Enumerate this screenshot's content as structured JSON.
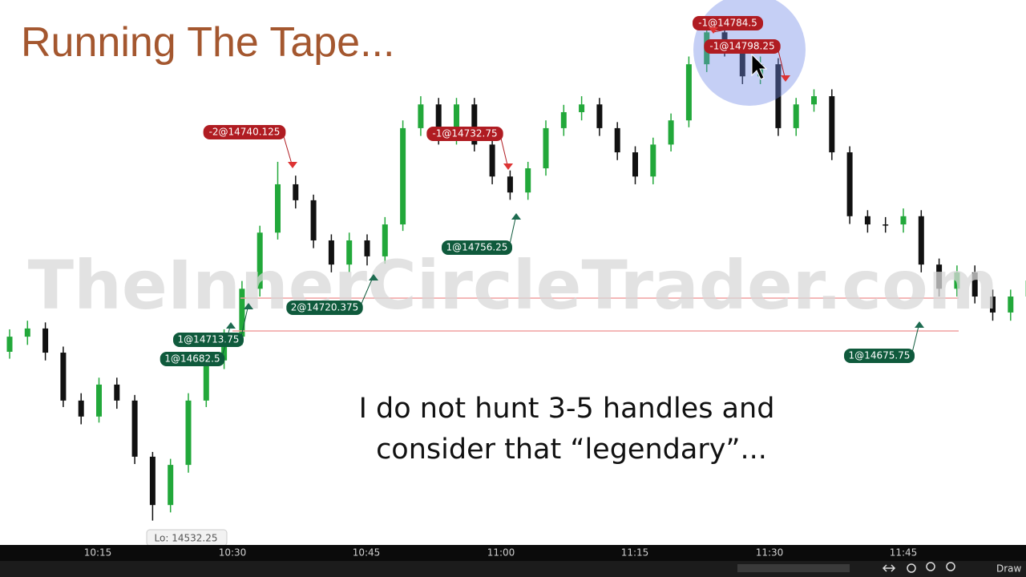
{
  "title": "Running The Tape...",
  "caption": [
    "I do not hunt 3-5 handles and",
    "consider that “legendary”..."
  ],
  "watermark": "TheInnerCircleTrader.com",
  "chart": {
    "type": "candlestick",
    "ylim": [
      14520,
      14830
    ],
    "up_color": "#22a83a",
    "down_color": "#111111",
    "open": [
      14630,
      14638.75,
      14643.5,
      14629.5,
      14601.75,
      14592.5,
      14611,
      14601.75,
      14569.25,
      14541.25,
      14564.5,
      14601.75,
      14625,
      14638.75,
      14666.5,
      14699,
      14727,
      14717.75,
      14694.5,
      14680.5,
      14694.5,
      14685.25,
      14703.75,
      14759.5,
      14773.25,
      14754.75,
      14773.25,
      14750,
      14731.5,
      14722.25,
      14736.25,
      14759.5,
      14768.75,
      14773.25,
      14759.5,
      14745.5,
      14731.5,
      14750,
      14764,
      14796.5,
      14815,
      14805.75,
      14789.5,
      14796.5,
      14759.5,
      14773.25,
      14778,
      14745.5,
      14708.5,
      14703.75,
      14703.75,
      14708.5,
      14680.5,
      14666.5,
      14676,
      14662,
      14652.75,
      14662
    ],
    "high": [
      14643,
      14648,
      14647,
      14633,
      14606,
      14615,
      14615,
      14605,
      14572,
      14568,
      14606,
      14629,
      14643,
      14671,
      14703,
      14740,
      14732,
      14721,
      14698,
      14699,
      14698,
      14708,
      14764,
      14778,
      14777,
      14777,
      14777,
      14754,
      14735,
      14740,
      14764,
      14773,
      14778,
      14777,
      14763,
      14749,
      14754,
      14768,
      14801,
      14819,
      14819,
      14810,
      14801,
      14800,
      14777,
      14782,
      14782,
      14749,
      14712,
      14708,
      14713,
      14712,
      14684,
      14680,
      14680,
      14666,
      14666,
      14675
    ],
    "low": [
      14626,
      14634,
      14625,
      14598,
      14588,
      14589,
      14597,
      14565,
      14532.25,
      14537,
      14560,
      14598,
      14620,
      14634,
      14662,
      14695,
      14713,
      14690,
      14676,
      14676,
      14680,
      14681,
      14700,
      14755,
      14750,
      14750,
      14746,
      14727,
      14718,
      14718,
      14732,
      14755,
      14764,
      14755,
      14741,
      14727,
      14727,
      14746,
      14760,
      14792,
      14801,
      14785,
      14785,
      14755,
      14755,
      14769,
      14741,
      14704,
      14699,
      14699,
      14699,
      14676,
      14662,
      14662,
      14658,
      14648,
      14648,
      14658
    ],
    "close": [
      14638.75,
      14643.5,
      14629.5,
      14601.75,
      14592.5,
      14611,
      14601.75,
      14569.25,
      14541.25,
      14564.5,
      14601.75,
      14625,
      14638.75,
      14666.5,
      14699,
      14727,
      14717.75,
      14694.5,
      14680.5,
      14694.5,
      14685.25,
      14703.75,
      14759.5,
      14773.25,
      14754.75,
      14773.25,
      14750,
      14731.5,
      14722.25,
      14736.25,
      14759.5,
      14768.75,
      14773.25,
      14759.5,
      14745.5,
      14731.5,
      14750,
      14764,
      14796.5,
      14815,
      14805.75,
      14789.5,
      14796.5,
      14759.5,
      14773.25,
      14778,
      14745.5,
      14708.5,
      14703.75,
      14703.75,
      14708.5,
      14680.5,
      14666.5,
      14676,
      14662,
      14652.75,
      14662,
      14671.25
    ]
  },
  "time_labels": [
    "10:15",
    "10:30",
    "10:45",
    "11:00",
    "11:15",
    "11:30",
    "11:45"
  ],
  "orders": [
    {
      "label": "-2@14740.125",
      "color": "#b01c22"
    },
    {
      "label": "-1@14732.75",
      "color": "#b01c22"
    },
    {
      "label": "-1@14784.5",
      "color": "#b01c22"
    },
    {
      "label": "-1@14798.25",
      "color": "#b01c22"
    },
    {
      "label": "1@14756.25",
      "color": "#0f5a3c"
    },
    {
      "label": "2@14720.375",
      "color": "#0f5a3c"
    },
    {
      "label": "1@14713.75",
      "color": "#0f5a3c"
    },
    {
      "label": "1@14682.5",
      "color": "#0f5a3c"
    },
    {
      "label": "1@14675.75",
      "color": "#0f5a3c"
    }
  ],
  "low_label": "Lo: 14532.25",
  "toolbar_label": "Draw"
}
